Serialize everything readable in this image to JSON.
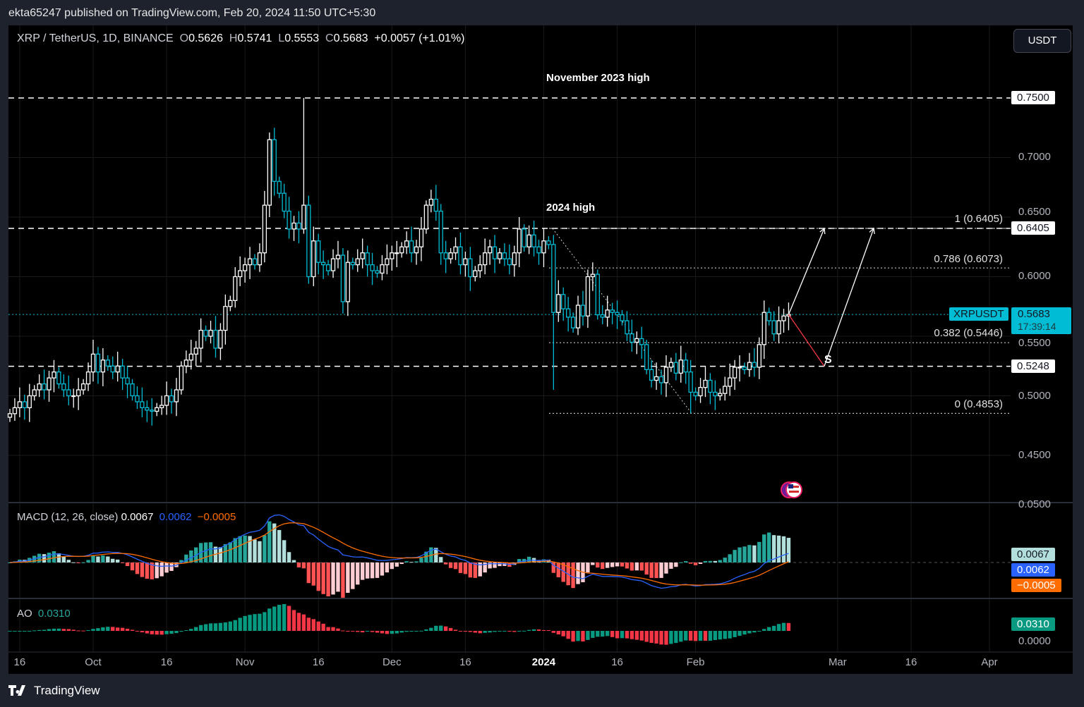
{
  "header": {
    "published": "ekta65247 published on TradingView.com, Feb 20, 2024 11:50 UTC+5:30"
  },
  "legend": {
    "symbol": "XRP / TetherUS, 1D, BINANCE",
    "o_label": "O",
    "o": "0.5626",
    "h_label": "H",
    "h": "0.5741",
    "l_label": "L",
    "l": "0.5553",
    "c_label": "C",
    "c": "0.5683",
    "change": "+0.0057 (+1.01%)"
  },
  "currency_button": "USDT",
  "annotations": {
    "nov_high": "November 2023 high",
    "high_2024": "2024 high",
    "s_label": "S"
  },
  "fib_levels": [
    {
      "label": "1 (0.6405)",
      "value": 0.6405
    },
    {
      "label": "0.786 (0.6073)",
      "value": 0.6073
    },
    {
      "label": "0.382 (0.5446)",
      "value": 0.5446
    },
    {
      "label": "0 (0.4853)",
      "value": 0.4853
    }
  ],
  "horizontal_levels": [
    {
      "label": "0.7500",
      "value": 0.75
    },
    {
      "label": "0.6405",
      "value": 0.6405
    },
    {
      "label": "0.5248",
      "value": 0.5248
    }
  ],
  "price_axis": [
    "0.7000",
    "0.6500",
    "0.6000",
    "0.5500",
    "0.5000",
    "0.4500"
  ],
  "price_axis_values": [
    0.7,
    0.65,
    0.6,
    0.55,
    0.5,
    0.45
  ],
  "current_price": {
    "symbol": "XRPUSDT",
    "price": "0.5683",
    "countdown": "17:39:14",
    "value": 0.5683
  },
  "time_axis": [
    {
      "label": "16",
      "date": "2023-09-16"
    },
    {
      "label": "Oct",
      "date": "2023-10-01"
    },
    {
      "label": "16",
      "date": "2023-10-16"
    },
    {
      "label": "Nov",
      "date": "2023-11-01"
    },
    {
      "label": "16",
      "date": "2023-11-16"
    },
    {
      "label": "Dec",
      "date": "2023-12-01"
    },
    {
      "label": "16",
      "date": "2023-12-16"
    },
    {
      "label": "2024",
      "date": "2024-01-01"
    },
    {
      "label": "16",
      "date": "2024-01-16"
    },
    {
      "label": "Feb",
      "date": "2024-02-01"
    },
    {
      "label": "Mar",
      "date": "2024-03-01"
    },
    {
      "label": "16",
      "date": "2024-03-16"
    },
    {
      "label": "Apr",
      "date": "2024-04-01"
    }
  ],
  "macd": {
    "title": "MACD (12, 26, close)",
    "hist": "0.0067",
    "macd": "0.0062",
    "signal": "−0.0005",
    "axis_top": "0.0500"
  },
  "ao": {
    "title": "AO",
    "value": "0.0310",
    "axis_zero": "0.0000"
  },
  "footer": {
    "brand": "TradingView"
  },
  "colors": {
    "up": "#ffffff",
    "down": "#00bcd4",
    "macd_line": "#2962ff",
    "signal_line": "#ff6d00",
    "hist_pos": "#26a69a",
    "hist_pos_light": "#b2dfdb",
    "hist_neg": "#ff5252",
    "hist_neg_light": "#ffcdd2",
    "ao_up": "#089981",
    "ao_down": "#f23645",
    "current_price": "#00bcd4"
  },
  "chart_data": {
    "type": "candlestick",
    "title": "XRP / TetherUS, 1D, BINANCE",
    "start_date": "2023-09-14",
    "interval": "1D",
    "ylim": [
      0.42,
      0.77
    ],
    "closes": [
      0.485,
      0.49,
      0.495,
      0.49,
      0.5,
      0.505,
      0.51,
      0.505,
      0.515,
      0.52,
      0.51,
      0.505,
      0.5,
      0.5,
      0.505,
      0.51,
      0.52,
      0.535,
      0.52,
      0.53,
      0.525,
      0.52,
      0.525,
      0.515,
      0.51,
      0.5,
      0.495,
      0.49,
      0.488,
      0.487,
      0.49,
      0.492,
      0.5,
      0.495,
      0.505,
      0.525,
      0.53,
      0.535,
      0.54,
      0.555,
      0.55,
      0.555,
      0.54,
      0.555,
      0.575,
      0.58,
      0.6,
      0.605,
      0.61,
      0.615,
      0.61,
      0.62,
      0.66,
      0.715,
      0.68,
      0.67,
      0.655,
      0.64,
      0.645,
      0.64,
      0.66,
      0.6,
      0.63,
      0.612,
      0.61,
      0.605,
      0.615,
      0.618,
      0.579,
      0.612,
      0.61,
      0.615,
      0.62,
      0.61,
      0.605,
      0.603,
      0.61,
      0.615,
      0.62,
      0.62,
      0.625,
      0.63,
      0.62,
      0.625,
      0.64,
      0.66,
      0.665,
      0.655,
      0.62,
      0.615,
      0.62,
      0.625,
      0.61,
      0.615,
      0.6,
      0.605,
      0.61,
      0.62,
      0.625,
      0.615,
      0.62,
      0.615,
      0.61,
      0.62,
      0.64,
      0.625,
      0.635,
      0.625,
      0.62,
      0.63,
      0.627,
      0.57,
      0.585,
      0.573,
      0.566,
      0.557,
      0.576,
      0.567,
      0.6,
      0.602,
      0.568,
      0.566,
      0.572,
      0.57,
      0.568,
      0.563,
      0.552,
      0.545,
      0.548,
      0.543,
      0.522,
      0.513,
      0.516,
      0.511,
      0.524,
      0.528,
      0.519,
      0.53,
      0.52,
      0.503,
      0.5,
      0.507,
      0.513,
      0.503,
      0.5,
      0.502,
      0.508,
      0.515,
      0.524,
      0.524,
      0.522,
      0.528,
      0.524,
      0.543,
      0.57,
      0.563,
      0.552,
      0.563,
      0.567,
      0.5683
    ],
    "notable_extremes": [
      {
        "date": "2023-11-13",
        "high": 0.75
      },
      {
        "date": "2024-01-03",
        "low": 0.505
      },
      {
        "date": "2024-01-01",
        "high": 0.6405
      },
      {
        "date": "2024-01-31",
        "low": 0.4853
      }
    ]
  }
}
